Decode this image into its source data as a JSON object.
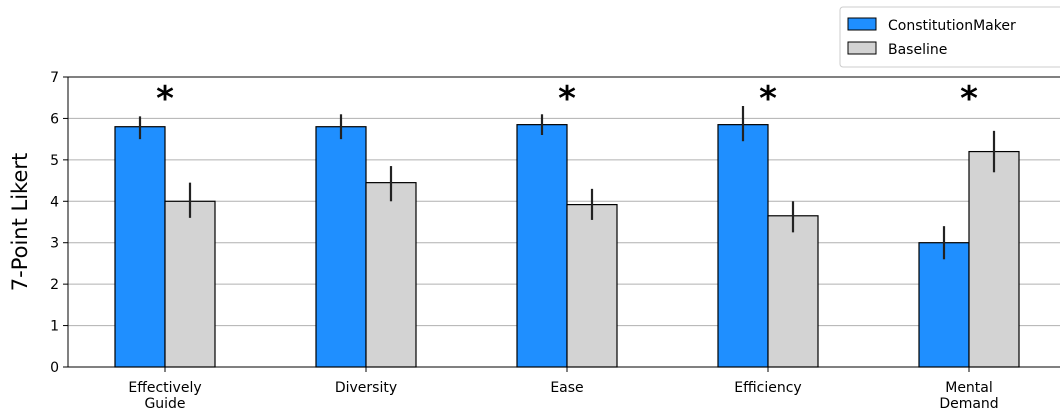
{
  "chart_data": {
    "type": "bar",
    "ylabel": "7-Point Likert",
    "ylim": [
      0,
      7
    ],
    "yticks": [
      0,
      1,
      2,
      3,
      4,
      5,
      6,
      7
    ],
    "grid": "horizontal",
    "legend_position": "top-right",
    "categories": [
      [
        "Effectively",
        "Guide"
      ],
      [
        "Diversity"
      ],
      [
        "Ease"
      ],
      [
        "Efficiency"
      ],
      [
        "Mental",
        "Demand"
      ]
    ],
    "series": [
      {
        "name": "ConstitutionMaker",
        "color": "#1f8fff",
        "values": [
          5.8,
          5.8,
          5.85,
          5.85,
          3.0
        ],
        "error_low": [
          5.5,
          5.5,
          5.6,
          5.45,
          2.6
        ],
        "error_high": [
          6.05,
          6.1,
          6.1,
          6.3,
          3.4
        ]
      },
      {
        "name": "Baseline",
        "color": "#d3d3d3",
        "values": [
          4.0,
          4.45,
          3.92,
          3.65,
          5.2
        ],
        "error_low": [
          3.6,
          4.0,
          3.55,
          3.25,
          4.7
        ],
        "error_high": [
          4.45,
          4.85,
          4.3,
          4.0,
          5.7
        ]
      }
    ],
    "significance": [
      "*",
      "",
      "*",
      "*",
      "*"
    ]
  }
}
